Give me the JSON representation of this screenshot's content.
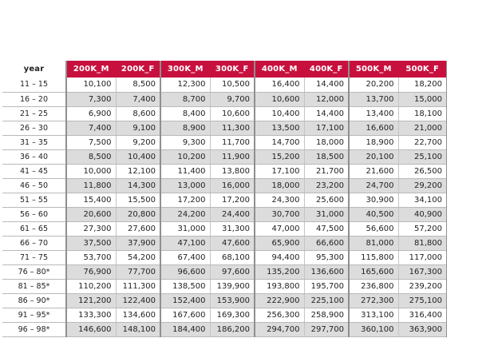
{
  "table": {
    "columns": [
      "year",
      "200K_M",
      "200K_F",
      "300K_M",
      "300K_F",
      "400K_M",
      "400K_F",
      "500K_M",
      "500K_F"
    ],
    "rows": [
      [
        "11 – 15",
        "10,100",
        "8,500",
        "12,300",
        "10,500",
        "16,400",
        "14,400",
        "20,200",
        "18,200"
      ],
      [
        "16 – 20",
        "7,300",
        "7,400",
        "8,700",
        "9,700",
        "10,600",
        "12,000",
        "13,700",
        "15,000"
      ],
      [
        "21 – 25",
        "6,900",
        "8,600",
        "8,400",
        "10,600",
        "10,400",
        "14,400",
        "13,400",
        "18,100"
      ],
      [
        "26 – 30",
        "7,400",
        "9,100",
        "8,900",
        "11,300",
        "13,500",
        "17,100",
        "16,600",
        "21,000"
      ],
      [
        "31 – 35",
        "7,500",
        "9,200",
        "9,300",
        "11,700",
        "14,700",
        "18,000",
        "18,900",
        "22,700"
      ],
      [
        "36 – 40",
        "8,500",
        "10,400",
        "10,200",
        "11,900",
        "15,200",
        "18,500",
        "20,100",
        "25,100"
      ],
      [
        "41 – 45",
        "10,000",
        "12,100",
        "11,400",
        "13,800",
        "17,100",
        "21,700",
        "21,600",
        "26,500"
      ],
      [
        "46 – 50",
        "11,800",
        "14,300",
        "13,000",
        "16,000",
        "18,000",
        "23,200",
        "24,700",
        "29,200"
      ],
      [
        "51 – 55",
        "15,400",
        "15,500",
        "17,200",
        "17,200",
        "24,300",
        "25,600",
        "30,900",
        "34,100"
      ],
      [
        "56 – 60",
        "20,600",
        "20,800",
        "24,200",
        "24,400",
        "30,700",
        "31,000",
        "40,500",
        "40,900"
      ],
      [
        "61 – 65",
        "27,300",
        "27,600",
        "31,000",
        "31,300",
        "47,000",
        "47,500",
        "56,600",
        "57,200"
      ],
      [
        "66 – 70",
        "37,500",
        "37,900",
        "47,100",
        "47,600",
        "65,900",
        "66,600",
        "81,000",
        "81,800"
      ],
      [
        "71 – 75",
        "53,700",
        "54,200",
        "67,400",
        "68,100",
        "94,400",
        "95,300",
        "115,800",
        "117,000"
      ],
      [
        "76 – 80*",
        "76,900",
        "77,700",
        "96,600",
        "97,600",
        "135,200",
        "136,600",
        "165,600",
        "167,300"
      ],
      [
        "81 – 85*",
        "110,200",
        "111,300",
        "138,500",
        "139,900",
        "193,800",
        "195,700",
        "236,800",
        "239,200"
      ],
      [
        "86 – 90*",
        "121,200",
        "122,400",
        "152,400",
        "153,900",
        "222,900",
        "225,100",
        "272,300",
        "275,100"
      ],
      [
        "91 – 95*",
        "133,300",
        "134,600",
        "167,600",
        "169,300",
        "256,300",
        "258,900",
        "313,100",
        "316,400"
      ],
      [
        "96 – 98*",
        "146,600",
        "148,100",
        "184,400",
        "186,200",
        "294,700",
        "297,700",
        "360,100",
        "363,900"
      ]
    ]
  },
  "colors": {
    "header_accent": "#c8103e",
    "stripe": "#dcdcdc",
    "frame": "#8f8f8f"
  }
}
